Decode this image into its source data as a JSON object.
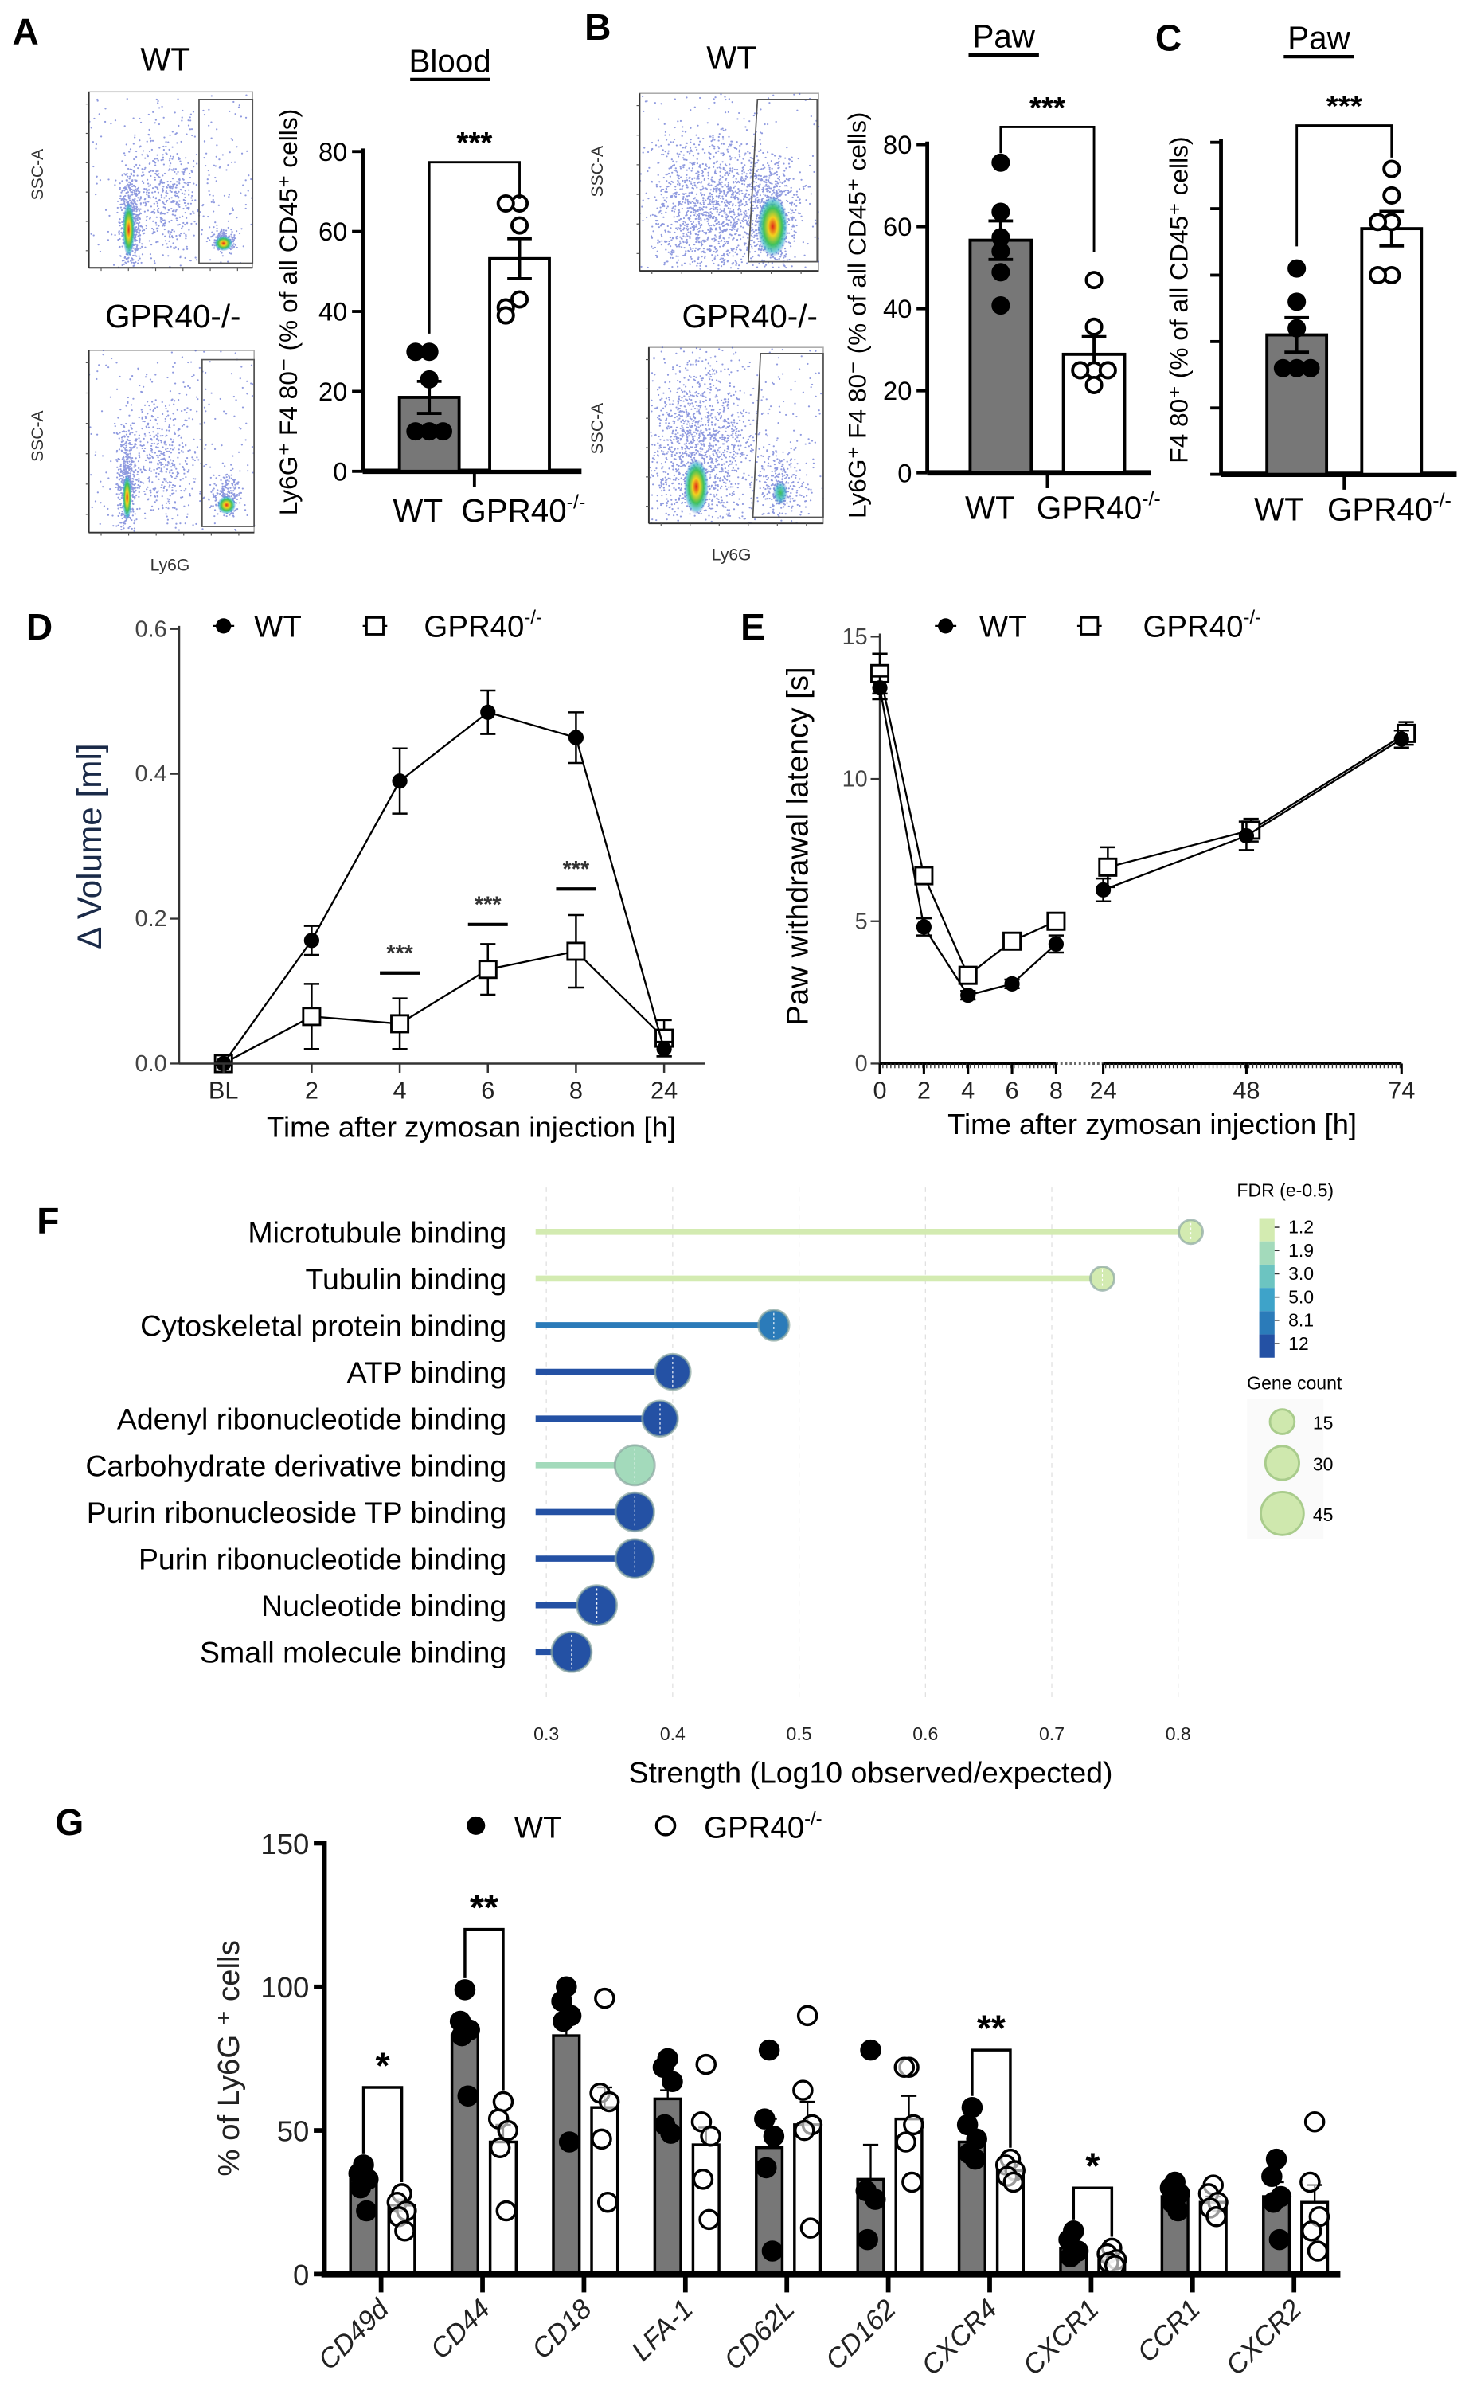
{
  "panel_letters": [
    "A",
    "B",
    "C",
    "D",
    "E",
    "F",
    "G"
  ],
  "flow_plots": {
    "A": {
      "top_title": "WT",
      "bottom_title": "GPR40-/-",
      "y_label": "SSC-A",
      "x_label": "Ly6G"
    },
    "B": {
      "top_title": "WT",
      "bottom_title": "GPR40-/-",
      "y_label": "SSC-A",
      "x_label": "Ly6G"
    }
  },
  "chart_data": [
    {
      "panel": "A",
      "type": "bar",
      "title": "Blood",
      "ylabel": "Ly6G⁺ F4 80⁻ (% of all CD45⁺ cells)",
      "categories": [
        "WT",
        "GPR40-/-"
      ],
      "ylim": [
        0,
        80
      ],
      "yticks": [
        "0",
        "20",
        "40",
        "60",
        "80"
      ],
      "ytick_values": [
        0,
        20,
        40,
        60,
        80
      ],
      "series": [
        {
          "name": "WT",
          "mean": 18.5,
          "sem": 4.0,
          "points": [
            29.9,
            29.9,
            23,
            10,
            10,
            10
          ]
        },
        {
          "name": "GPR40-/-",
          "mean": 53.2,
          "sem": 5.0,
          "points": [
            67,
            67,
            61.5,
            43,
            41,
            39
          ]
        }
      ],
      "significance": "***"
    },
    {
      "panel": "B",
      "type": "bar",
      "title": "Paw",
      "ylabel": "Ly6G⁺ F4 80⁻ (% of all CD45⁺ cells)",
      "categories": [
        "WT",
        "GPR40-/-"
      ],
      "ylim": [
        0,
        80
      ],
      "yticks": [
        "0",
        "20",
        "40",
        "60",
        "80"
      ],
      "ytick_values": [
        0,
        20,
        40,
        60,
        80
      ],
      "series": [
        {
          "name": "WT",
          "mean": 56.7,
          "sem": 4.7,
          "points": [
            75.6,
            63.6,
            57.4,
            54,
            48.9,
            40.8
          ]
        },
        {
          "name": "GPR40-/-",
          "mean": 28.9,
          "sem": 4.3,
          "points": [
            47,
            35.6,
            25,
            25,
            25,
            21.4
          ]
        }
      ],
      "significance": "***"
    },
    {
      "panel": "C",
      "type": "bar",
      "title": "Paw",
      "ylabel": "F4 80⁺ (% of all CD45⁺ cells)",
      "categories": [
        "WT",
        "GPR40-/-"
      ],
      "ylim": [
        0,
        5
      ],
      "yticks": [],
      "ytick_values": [
        0,
        1,
        2,
        3,
        4,
        5
      ],
      "series": [
        {
          "name": "WT",
          "mean": 2.1,
          "sem": 0.26,
          "points": [
            3.1,
            2.6,
            2.2,
            1.6,
            1.6,
            1.6
          ]
        },
        {
          "name": "GPR40-/-",
          "mean": 3.7,
          "sem": 0.26,
          "points": [
            4.6,
            4.2,
            3.8,
            3.8,
            3.0,
            3.0
          ]
        }
      ],
      "significance": "***"
    },
    {
      "panel": "D",
      "type": "line",
      "legend": [
        "WT",
        "GPR40-/-"
      ],
      "x": [
        "BL",
        "2",
        "4",
        "6",
        "8",
        "24"
      ],
      "xlabel": "Time after zymosan injection [h]",
      "ylabel": "Δ Volume [ml]",
      "ylim": [
        0,
        0.6
      ],
      "yticks": [
        "0.0",
        "0.2",
        "0.4",
        "0.6"
      ],
      "ytick_values": [
        0,
        0.2,
        0.4,
        0.6
      ],
      "series": [
        {
          "name": "WT",
          "y": [
            0,
            0.17,
            0.39,
            0.485,
            0.45,
            0.02
          ],
          "err": [
            0,
            0.02,
            0.045,
            0.03,
            0.035,
            0.01
          ]
        },
        {
          "name": "GPR40-/-",
          "y": [
            0,
            0.065,
            0.055,
            0.13,
            0.155,
            0.035
          ],
          "err": [
            0,
            0.045,
            0.035,
            0.035,
            0.05,
            0.025
          ]
        }
      ],
      "significance": [
        {
          "x": "4",
          "label": "***",
          "level": 0.125
        },
        {
          "x": "6",
          "label": "***",
          "level": 0.192
        },
        {
          "x": "8",
          "label": "***",
          "level": 0.241
        }
      ]
    },
    {
      "panel": "E",
      "type": "line",
      "legend": [
        "WT",
        "GPR40-/-"
      ],
      "x": [
        0,
        2,
        4,
        6,
        8,
        24,
        48,
        74
      ],
      "xticks": [
        "0",
        "2",
        "4",
        "6",
        "8",
        "24",
        "48",
        "74"
      ],
      "xlabel": "Time after zymosan injection [h]",
      "ylabel": "Paw withdrawal latency [s]",
      "ylim": [
        0,
        15
      ],
      "yticks": [
        "0",
        "5",
        "10",
        "15"
      ],
      "ytick_values": [
        0,
        5,
        10,
        15
      ],
      "series": [
        {
          "name": "WT",
          "y": [
            13.2,
            4.8,
            2.4,
            2.8,
            4.2,
            6.1,
            8.0,
            11.4
          ],
          "err": [
            0.4,
            0.3,
            0.15,
            0.15,
            0.3,
            0.4,
            0.5,
            0.3
          ]
        },
        {
          "name": "GPR40-/-",
          "y": [
            13.7,
            6.6,
            3.1,
            4.3,
            5.0,
            6.9,
            8.2,
            11.6
          ],
          "err": [
            0.7,
            0.2,
            0.2,
            0.15,
            0.2,
            0.7,
            0.4,
            0.4
          ]
        }
      ]
    },
    {
      "panel": "F",
      "type": "lollipop",
      "terms": [
        "Microtubule binding",
        "Tubulin binding",
        "Cytoskeletal protein binding",
        "ATP binding",
        "Adenyl ribonucleotide binding",
        "Carbohydrate derivative binding",
        "Purin ribonucleoside TP binding",
        "Purin ribonucleotide binding",
        "Nucleotide binding",
        "Small molecule binding"
      ],
      "strength": [
        0.81,
        0.74,
        0.48,
        0.4,
        0.39,
        0.37,
        0.37,
        0.37,
        0.34,
        0.32
      ],
      "fdr": [
        1.2,
        1.2,
        8.1,
        12,
        12,
        1.9,
        12,
        12,
        12,
        12
      ],
      "gene_count": [
        14,
        14,
        25,
        33,
        33,
        40,
        38,
        38,
        40,
        40
      ],
      "xlim": [
        0.3,
        0.8
      ],
      "xticks": [
        "0.3",
        "0.4",
        "0.5",
        "0.6",
        "0.7",
        "0.8"
      ],
      "xtick_values": [
        0.3,
        0.4,
        0.5,
        0.6,
        0.7,
        0.8
      ],
      "xlabel": "Strength (Log10 observed/expected)",
      "colorbar": {
        "title": "FDR (e-0.5)",
        "ticks": [
          "1.2",
          "1.9",
          "3.0",
          "5.0",
          "8.1",
          "12"
        ],
        "colors": [
          "#d3ebb1",
          "#a3dabb",
          "#6cc4c1",
          "#3ea3c9",
          "#2b7bb9",
          "#2451a4"
        ]
      },
      "size_legend": {
        "title": "Gene count",
        "values": [
          "15",
          "30",
          "45"
        ],
        "color": "#cfe8ae"
      }
    },
    {
      "panel": "G",
      "type": "bar",
      "legend": [
        "WT",
        "GPR40-/-"
      ],
      "categories": [
        "CD49d",
        "CD44",
        "CD18",
        "LFA-1",
        "CD62L",
        "CD162",
        "CXCR4",
        "CXCR1",
        "CCR1",
        "CXCR2"
      ],
      "ylabel": "% of Ly6G ⁺ cells",
      "ylim": [
        0,
        150
      ],
      "yticks": [
        "0",
        "50",
        "100",
        "150"
      ],
      "ytick_values": [
        0,
        50,
        100,
        150
      ],
      "series": [
        {
          "name": "WT",
          "mean": [
            33,
            83,
            83,
            61,
            44,
            33,
            46,
            9,
            27,
            27
          ],
          "sem": [
            3,
            5,
            9,
            3,
            10,
            12,
            4,
            2,
            2,
            5
          ],
          "points": [
            [
              38,
              35,
              33,
              30,
              22
            ],
            [
              99,
              88,
              85,
              83,
              62
            ],
            [
              100,
              95,
              90,
              88,
              46
            ],
            [
              75,
              72,
              67,
              52,
              49
            ],
            [
              78,
              54,
              48,
              37,
              8
            ],
            [
              78,
              29,
              26,
              12
            ],
            [
              58,
              52,
              47,
              42,
              40
            ],
            [
              15,
              12,
              8,
              6
            ],
            [
              32,
              30,
              28,
              25,
              22
            ],
            [
              40,
              34,
              27,
              25,
              12
            ]
          ]
        },
        {
          "name": "GPR40-/-",
          "mean": [
            24,
            46,
            58,
            45,
            52,
            54,
            36,
            5,
            25,
            25
          ],
          "sem": [
            2,
            6,
            7,
            6,
            8,
            8,
            2,
            1,
            2,
            6
          ],
          "points": [
            [
              28,
              25,
              22,
              20,
              15
            ],
            [
              60,
              54,
              50,
              44,
              22
            ],
            [
              96,
              63,
              60,
              47,
              25
            ],
            [
              73,
              53,
              48,
              33,
              19
            ],
            [
              90,
              64,
              52,
              50,
              16
            ],
            [
              72,
              72,
              52,
              46,
              32
            ],
            [
              40,
              38,
              36,
              34,
              32
            ],
            [
              9,
              7,
              5,
              4,
              3
            ],
            [
              31,
              28,
              25,
              23,
              20
            ],
            [
              53,
              32,
              20,
              15,
              8
            ]
          ]
        }
      ],
      "significance": [
        {
          "category": "CD49d",
          "label": "*",
          "level": 65
        },
        {
          "category": "CD44",
          "label": "**",
          "level": 120
        },
        {
          "category": "CXCR4",
          "label": "**",
          "level": 78
        },
        {
          "category": "CXCR1",
          "label": "*",
          "level": 30
        }
      ]
    }
  ]
}
